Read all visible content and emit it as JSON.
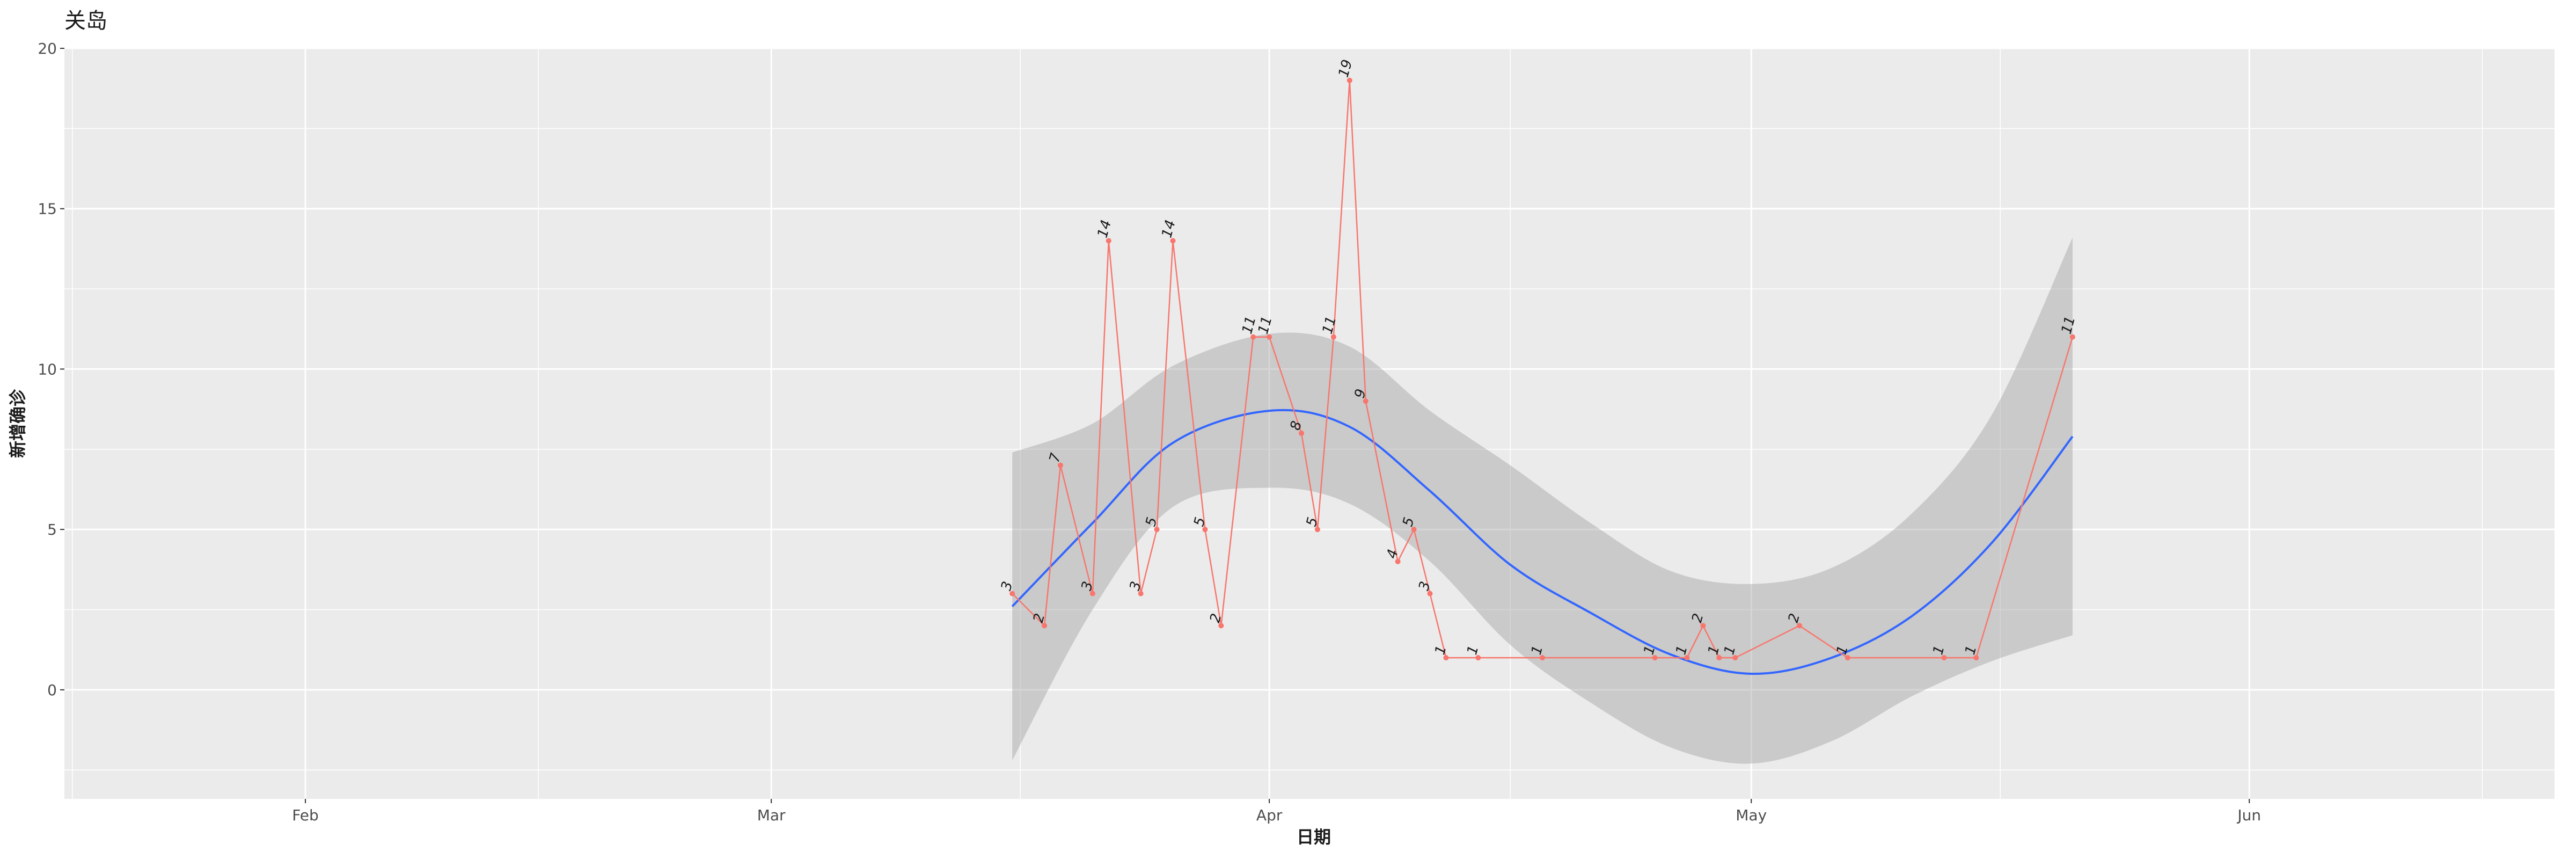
{
  "chart_data": {
    "type": "line",
    "title": "关岛",
    "xlabel": "日期",
    "ylabel": "新增确诊",
    "x_range": [
      "2020-01-17",
      "2020-06-20"
    ],
    "ylim": [
      -3.4,
      20
    ],
    "y_ticks": [
      0,
      5,
      10,
      15,
      20
    ],
    "x_ticks": [
      {
        "date": "2020-02-01",
        "label": "Feb"
      },
      {
        "date": "2020-03-01",
        "label": "Mar"
      },
      {
        "date": "2020-04-01",
        "label": "Apr"
      },
      {
        "date": "2020-05-01",
        "label": "May"
      },
      {
        "date": "2020-06-01",
        "label": "Jun"
      }
    ],
    "grid": true,
    "series": [
      {
        "color": "#F8766D",
        "x": [
          "2020-03-16",
          "2020-03-18",
          "2020-03-19",
          "2020-03-21",
          "2020-03-22",
          "2020-03-24",
          "2020-03-25",
          "2020-03-26",
          "2020-03-28",
          "2020-03-29",
          "2020-03-31",
          "2020-04-01",
          "2020-04-03",
          "2020-04-04",
          "2020-04-05",
          "2020-04-06",
          "2020-04-07",
          "2020-04-09",
          "2020-04-10",
          "2020-04-11",
          "2020-04-12",
          "2020-04-14",
          "2020-04-18",
          "2020-04-25",
          "2020-04-27",
          "2020-04-28",
          "2020-04-29",
          "2020-04-30",
          "2020-05-04",
          "2020-05-07",
          "2020-05-13",
          "2020-05-15",
          "2020-05-21"
        ],
        "y": [
          3,
          2,
          7,
          3,
          14,
          3,
          5,
          14,
          5,
          2,
          11,
          11,
          8,
          5,
          11,
          19,
          9,
          4,
          5,
          3,
          1,
          1,
          1,
          1,
          1,
          2,
          1,
          1,
          2,
          1,
          1,
          1,
          11
        ]
      }
    ],
    "smooth": {
      "color": "#3366FF",
      "band_color": "#999999",
      "x": [
        "2020-03-16",
        "2020-03-21",
        "2020-03-26",
        "2020-04-01",
        "2020-04-06",
        "2020-04-11",
        "2020-04-16",
        "2020-04-21",
        "2020-04-26",
        "2020-05-01",
        "2020-05-06",
        "2020-05-11",
        "2020-05-16",
        "2020-05-21"
      ],
      "y": [
        2.6,
        5.2,
        7.7,
        8.7,
        8.2,
        6.2,
        3.9,
        2.4,
        1.1,
        0.5,
        1.0,
        2.3,
        4.6,
        7.9
      ],
      "ymin": [
        -2.2,
        2.5,
        5.7,
        6.3,
        5.8,
        4.0,
        1.4,
        -0.4,
        -1.8,
        -2.3,
        -1.6,
        -0.2,
        0.9,
        1.7
      ],
      "ymax": [
        7.4,
        8.3,
        10.1,
        11.1,
        10.7,
        8.7,
        7.0,
        5.2,
        3.7,
        3.3,
        3.8,
        5.5,
        8.6,
        14.1
      ]
    }
  }
}
